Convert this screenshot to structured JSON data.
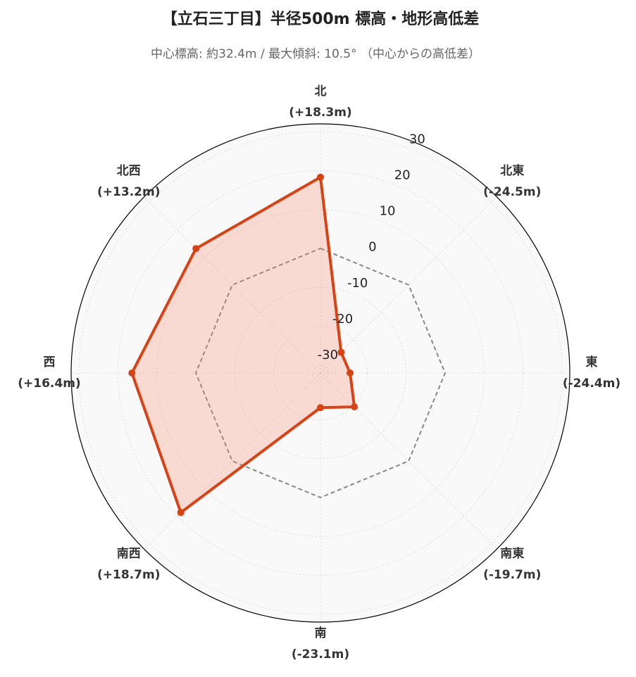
{
  "chart_data": {
    "type": "radar",
    "title": "【立石三丁目】半径500m 標高・地形高低差",
    "subtitle": "中心標高: 約32.4m / 最大傾斜: 10.5° （中心からの高低差）",
    "categories": [
      "北",
      "北東",
      "東",
      "南東",
      "南",
      "南西",
      "西",
      "北西"
    ],
    "values": [
      18.3,
      -24.5,
      -24.4,
      -19.7,
      -23.1,
      18.7,
      16.4,
      13.2
    ],
    "value_labels": [
      "(+18.3m)",
      "(-24.5m)",
      "(-24.4m)",
      "(-19.7m)",
      "(-23.1m)",
      "(+18.7m)",
      "(+16.4m)",
      "(+13.2m)"
    ],
    "color": "#d84315",
    "fill": "rgba(250, 128, 100, 0.25)",
    "ylim": [
      -32,
      32
    ],
    "yticks": [
      -30,
      -20,
      -10,
      0,
      10,
      20,
      30
    ],
    "grid": true
  }
}
